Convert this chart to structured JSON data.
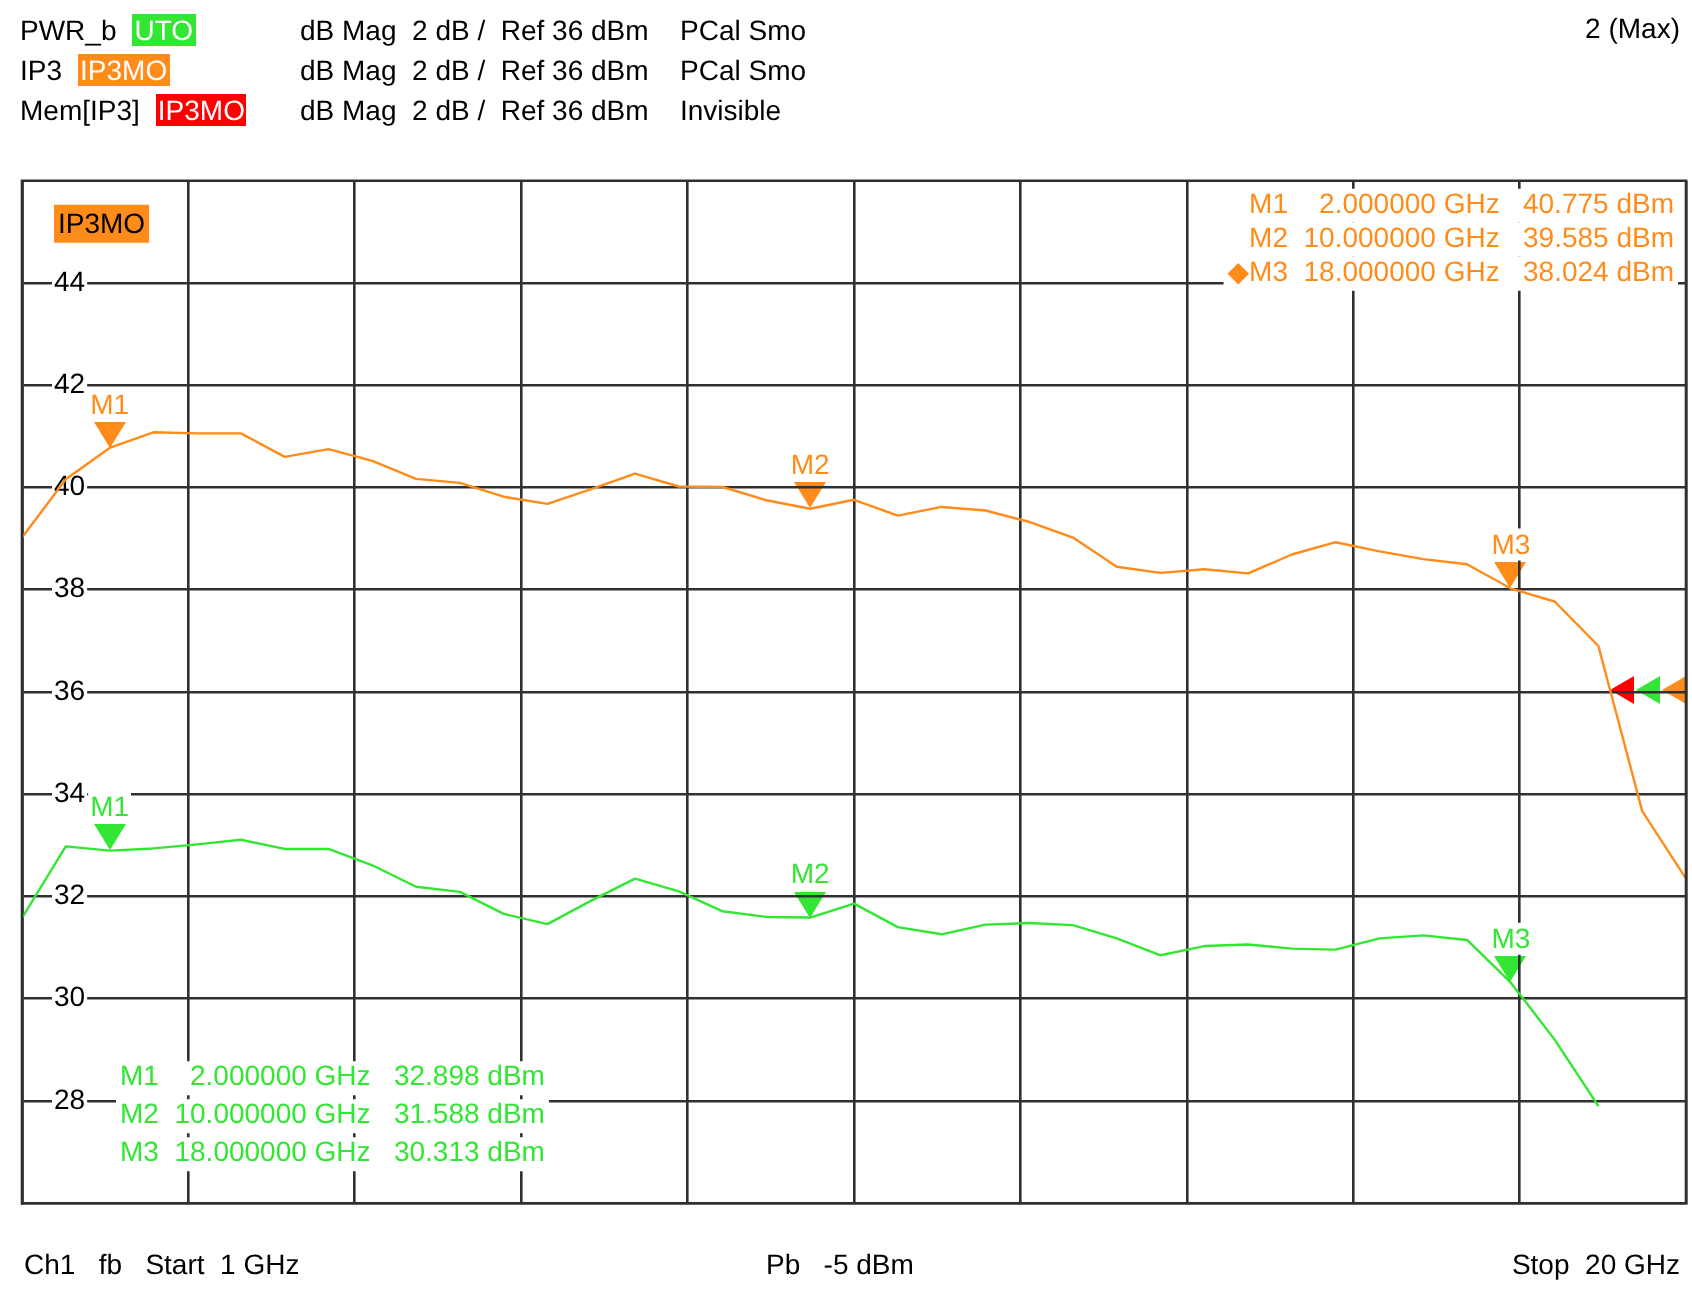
{
  "chart_data": {
    "type": "line",
    "categories": [
      null,
      null,
      null,
      null,
      null,
      null,
      null,
      null,
      null,
      null,
      null,
      null,
      null,
      null,
      null,
      null,
      null,
      null,
      null,
      null,
      null,
      null,
      null,
      null,
      null,
      null,
      null,
      null,
      null,
      null,
      null,
      null,
      null,
      null,
      null,
      null,
      null,
      null,
      null
    ],
    "series": [
      {
        "name": "PWR_b",
        "color": "#33e633",
        "values": [
          31.58,
          32.98,
          32.898,
          32.94,
          33.02,
          33.11,
          32.93,
          32.93,
          32.61,
          32.19,
          32.09,
          31.66,
          31.46,
          31.92,
          32.35,
          32.1,
          31.71,
          31.6,
          31.588,
          31.86,
          31.4,
          31.26,
          31.45,
          31.48,
          31.44,
          31.18,
          30.85,
          31.03,
          31.06,
          30.98,
          30.96,
          31.18,
          31.24,
          31.15,
          30.313,
          29.2,
          27.9,
          null,
          null
        ]
      },
      {
        "name": "IP3",
        "color": "#ff8c1a",
        "values": [
          39.02,
          40.16,
          40.775,
          41.08,
          41.06,
          41.06,
          40.6,
          40.75,
          40.52,
          40.17,
          40.09,
          39.82,
          39.68,
          39.97,
          40.27,
          40.02,
          40.01,
          39.75,
          39.585,
          39.76,
          39.45,
          39.62,
          39.55,
          39.33,
          39.02,
          38.45,
          38.33,
          38.4,
          38.32,
          38.69,
          38.93,
          38.75,
          38.6,
          38.5,
          38.024,
          37.77,
          36.9,
          33.67,
          32.35
        ]
      },
      {
        "name": "Mem[IP3]",
        "color": "#ff0000",
        "values": [
          null,
          null,
          null,
          null,
          null,
          null,
          null,
          null,
          null,
          null,
          null,
          null,
          null,
          null,
          null,
          null,
          null,
          null,
          null,
          null,
          null,
          null,
          null,
          null,
          null,
          null,
          null,
          null,
          null,
          null,
          null,
          null,
          null,
          null,
          null,
          null,
          null,
          null,
          null
        ]
      }
    ],
    "ylim": [
      26,
      46
    ],
    "yticks": [
      28,
      30,
      32,
      34,
      36,
      38,
      40,
      42,
      44
    ],
    "tick_labels": "y",
    "grid": true,
    "legend": "top left",
    "marker": "none",
    "line_style": "solid",
    "annotations": [
      "UTO",
      "dB Mag  2 dB /  Ref 36 dBm",
      "PCal Smo",
      "IP3MO",
      "dB Mag  2 dB /  Ref 36 dBm",
      "PCal Smo",
      "IP3MO",
      "dB Mag  2 dB /  Ref 36 dBm",
      "Invisible",
      "2 (Max)",
      "IP3MO",
      "M1    2.000000 GHz   40.775 dBm",
      "M2  10.000000 GHz   39.585 dBm",
      "◆M3  18.000000 GHz   38.024 dBm",
      "M1    2.000000 GHz   32.898 dBm",
      "M2  10.000000 GHz   31.588 dBm",
      "M3  18.000000 GHz   30.313 dBm",
      "Ch1   fb   Start  1 GHz",
      "Pb   -5 dBm",
      "Stop  20 GHz",
      {
        "text": "M1",
        "y": 40.775
      },
      {
        "text": "M2",
        "y": 39.585
      },
      {
        "text": "M3",
        "y": 38.024
      },
      {
        "text": "M1",
        "y": 32.898
      },
      {
        "text": "M2",
        "y": 31.588
      },
      {
        "text": "M3",
        "y": 30.313
      }
    ]
  }
}
